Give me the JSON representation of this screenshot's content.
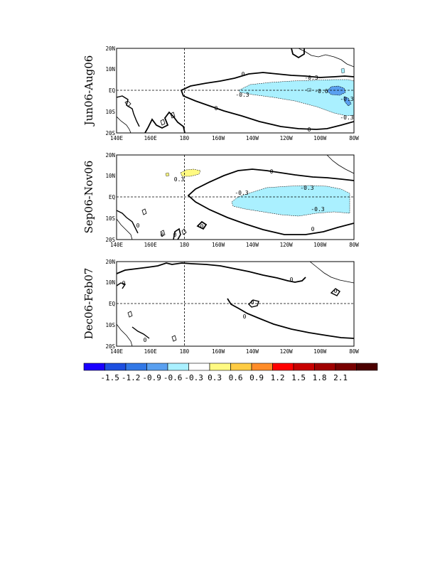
{
  "chart_data": {
    "type": "heatmap",
    "x_ticks": [
      "140E",
      "160E",
      "180",
      "160W",
      "140W",
      "120W",
      "100W",
      "80W"
    ],
    "y_ticks": [
      "20N",
      "10N",
      "EQ",
      "10S",
      "20S"
    ],
    "xlim_deg_lon": [
      140,
      280
    ],
    "ylim_deg_lat": [
      -20,
      20
    ],
    "reference_lines": [
      "equator",
      "dateline"
    ],
    "panels": [
      {
        "title": "Jun06-Aug06",
        "contour_labels": [
          "0",
          "0",
          "0",
          "-0.3",
          "-0.3",
          "-0.3",
          "-0.6",
          "-0.3"
        ]
      },
      {
        "title": "Sep06-Nov06",
        "contour_labels": [
          "0.3",
          "0",
          "0",
          "-0.3",
          "-0.3",
          "-0.3",
          "0",
          "0",
          "0",
          "0"
        ]
      },
      {
        "title": "Dec06-Feb07",
        "contour_labels": [
          "0",
          "0",
          "0",
          "0",
          "0",
          "0"
        ]
      }
    ],
    "colorbar": {
      "tick_labels": [
        "-1.5",
        "-1.2",
        "-0.9",
        "-0.6",
        "-0.3",
        "0.3",
        "0.6",
        "0.9",
        "1.2",
        "1.5",
        "1.8",
        "2.1"
      ],
      "colors": [
        "#1a00ff",
        "#1d4fe0",
        "#3278e6",
        "#5aa0f0",
        "#aaf0ff",
        "#ffffff",
        "#fffa82",
        "#ffcc44",
        "#ff8c28",
        "#ff0000",
        "#c80000",
        "#a00000",
        "#780000",
        "#4b0000"
      ]
    }
  }
}
